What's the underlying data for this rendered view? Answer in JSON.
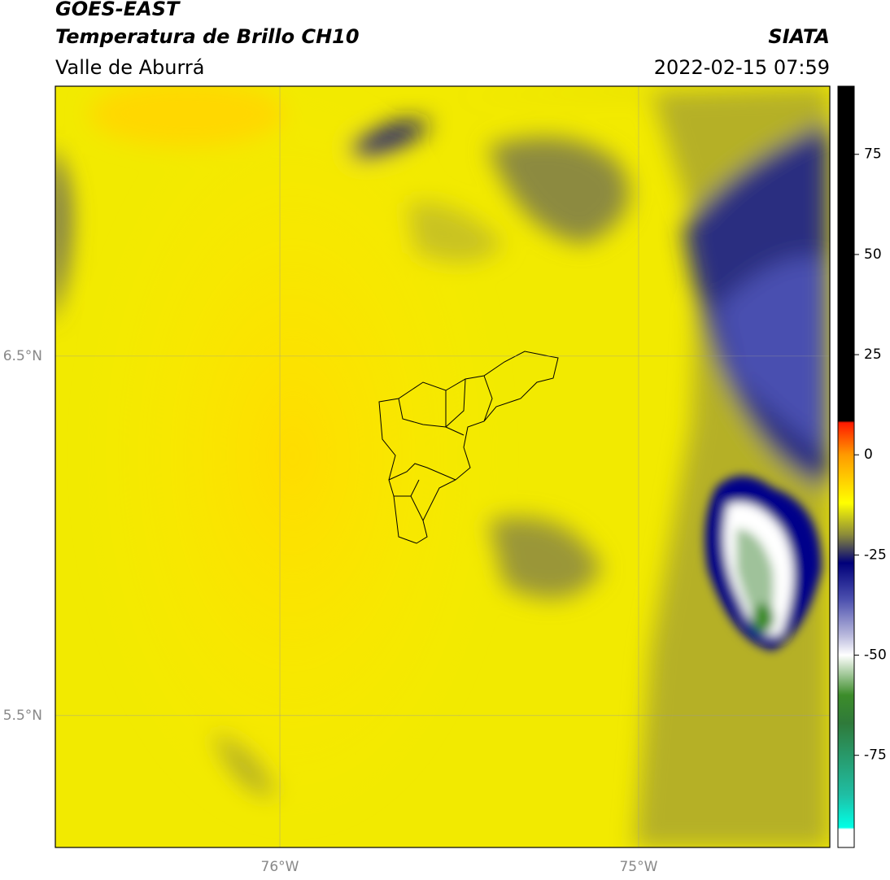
{
  "header": {
    "title": "GOES-EAST",
    "subtitle": "Temperatura de Brillo CH10",
    "region": "Valle de Aburrá",
    "source": "SIATA",
    "datetime": "2022-02-15 07:59"
  },
  "map": {
    "xlim": [
      -76.626,
      -74.467
    ],
    "ylim": [
      5.133,
      7.251
    ],
    "xticks": [
      {
        "value": -76,
        "label": "76°W"
      },
      {
        "value": -75,
        "label": "75°W"
      }
    ],
    "yticks": [
      {
        "value": 6.5,
        "label": "6.5°N"
      },
      {
        "value": 5.5,
        "label": "5.5°N"
      }
    ],
    "grid": true
  },
  "colorbar": {
    "lim": [
      -98,
      92
    ],
    "ticks": [
      75,
      50,
      25,
      0,
      -25,
      -50,
      -75
    ],
    "stops": [
      {
        "value": 92,
        "color": "#000000"
      },
      {
        "value": 8.5,
        "color": "#000000"
      },
      {
        "value": 8,
        "color": "#ff1a00"
      },
      {
        "value": 0,
        "color": "#ff9a00"
      },
      {
        "value": -12,
        "color": "#ffff00"
      },
      {
        "value": -20,
        "color": "#8a8a3a"
      },
      {
        "value": -27,
        "color": "#00007a"
      },
      {
        "value": -36,
        "color": "#4b4fae"
      },
      {
        "value": -45,
        "color": "#b8b8dc"
      },
      {
        "value": -50,
        "color": "#ffffff"
      },
      {
        "value": -60,
        "color": "#3c8c2a"
      },
      {
        "value": -67,
        "color": "#2f7a3a"
      },
      {
        "value": -85,
        "color": "#1fbfa5"
      },
      {
        "value": -93,
        "color": "#00ffe6"
      },
      {
        "value": -93.5,
        "color": "#ffffff"
      },
      {
        "value": -98,
        "color": "#ffffff"
      }
    ]
  }
}
